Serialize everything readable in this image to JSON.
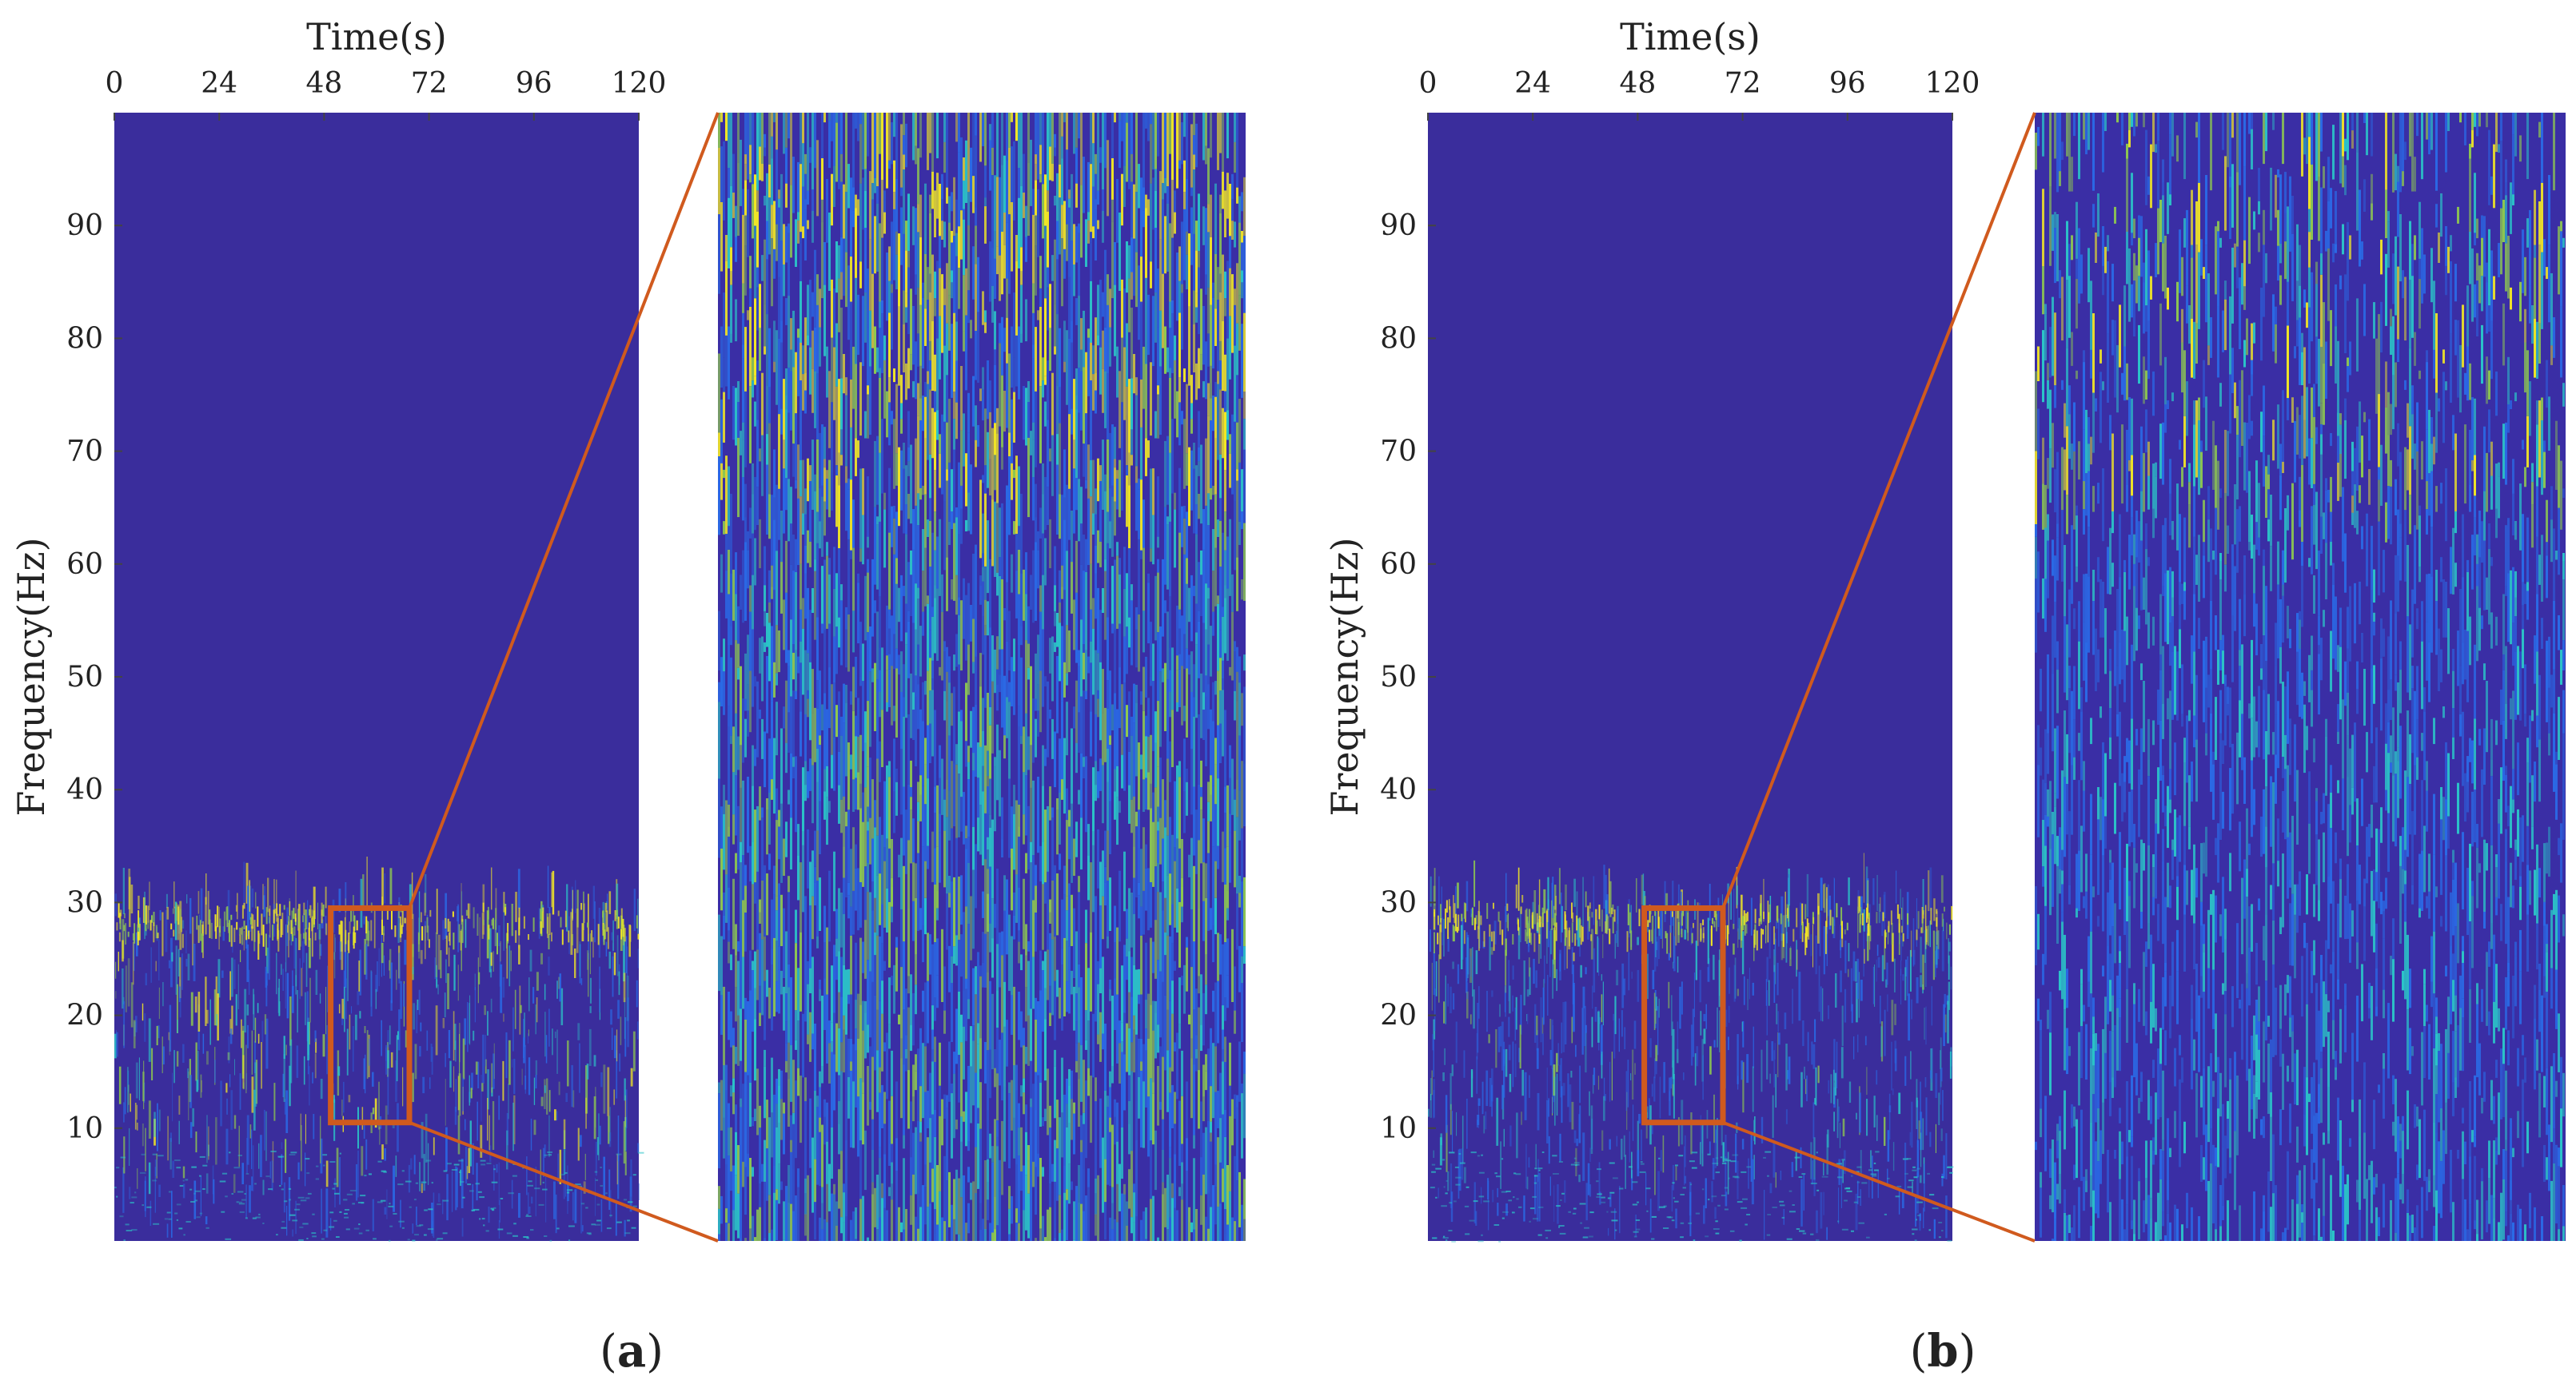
{
  "figure": {
    "colors": {
      "background": "#3a2d9c",
      "low": "#3a2ea5",
      "mid_blue": "#2a6ae6",
      "cyan": "#2bc4c8",
      "green": "#8ec850",
      "yellow": "#f1e626",
      "highlight": "#d05a1e"
    }
  },
  "chart_data": [
    {
      "type": "heatmap",
      "panel": "a",
      "panel_label_prefix": "(",
      "panel_label_letter": "a",
      "panel_label_suffix": ")",
      "xlabel": "Time(s)",
      "ylabel": "Frequency(Hz)",
      "xlim": [
        0,
        120
      ],
      "ylim": [
        0,
        100
      ],
      "xticks": [
        0,
        24,
        48,
        72,
        96,
        120
      ],
      "xtick_labels": [
        "0",
        "24",
        "48",
        "72",
        "96",
        "120"
      ],
      "yticks": [
        10,
        20,
        30,
        40,
        50,
        60,
        70,
        80,
        90
      ],
      "ytick_labels": [
        "10",
        "20",
        "30",
        "40",
        "50",
        "60",
        "70",
        "80",
        "90"
      ],
      "energy_band_hz": [
        0,
        30
      ],
      "highlight_box": {
        "time_s": [
          49.5,
          67.5
        ],
        "freq_hz": [
          10.5,
          29.5
        ]
      },
      "zoom_density": 0.62
    },
    {
      "type": "heatmap",
      "panel": "b",
      "panel_label_prefix": "(",
      "panel_label_letter": "b",
      "panel_label_suffix": ")",
      "xlabel": "Time(s)",
      "ylabel": "Frequency(Hz)",
      "xlim": [
        0,
        120
      ],
      "ylim": [
        0,
        100
      ],
      "xticks": [
        0,
        24,
        48,
        72,
        96,
        120
      ],
      "xtick_labels": [
        "0",
        "24",
        "48",
        "72",
        "96",
        "120"
      ],
      "yticks": [
        10,
        20,
        30,
        40,
        50,
        60,
        70,
        80,
        90
      ],
      "ytick_labels": [
        "10",
        "20",
        "30",
        "40",
        "50",
        "60",
        "70",
        "80",
        "90"
      ],
      "energy_band_hz": [
        0,
        30
      ],
      "highlight_box": {
        "time_s": [
          49.5,
          67.5
        ],
        "freq_hz": [
          10.5,
          29.5
        ]
      },
      "zoom_density": 0.36
    }
  ]
}
